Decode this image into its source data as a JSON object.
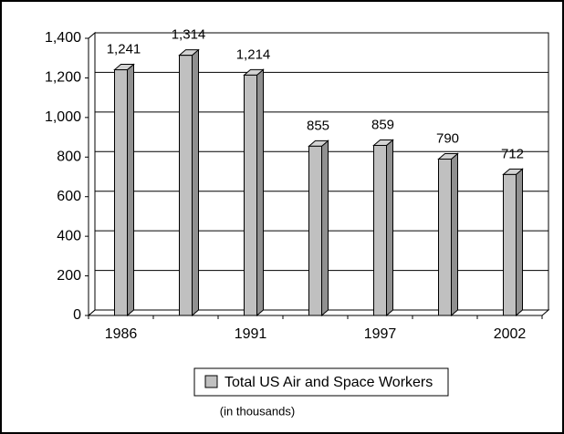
{
  "chart_data": {
    "type": "bar",
    "categories": [
      "1986",
      null,
      "1991",
      null,
      "1997",
      null,
      "2002"
    ],
    "series": [
      {
        "name": "Total US Air and Space Workers",
        "color": "#c0c0c0",
        "values": [
          1241,
          1314,
          1214,
          855,
          859,
          790,
          712
        ],
        "value_labels": [
          "1,241",
          "1,314",
          "1,214",
          "855",
          "859",
          "790",
          "712"
        ]
      }
    ],
    "subtitle": "(in thousands)",
    "ylim": [
      0,
      1400
    ],
    "yticks": [
      0,
      200,
      400,
      600,
      800,
      {
        "value": 1000,
        "label": "1,000"
      },
      {
        "value": 1200,
        "label": "1,200"
      },
      {
        "value": 1400,
        "label": "1,400"
      }
    ],
    "grid": true
  }
}
